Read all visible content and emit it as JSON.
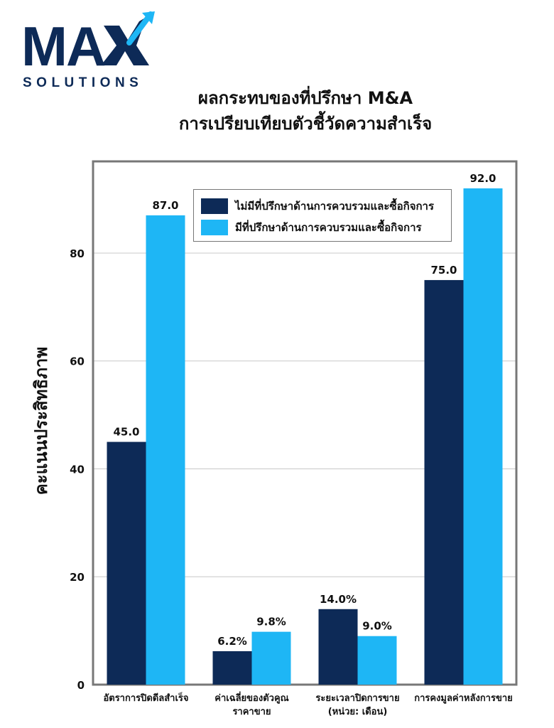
{
  "logo": {
    "text_main": "MAX",
    "text_sub": "SOLUTIONS"
  },
  "title_line1": "ผลกระทบของที่ปรึกษา M&A",
  "title_line2": "การเปรียบเทียบตัวชี้วัดความสำเร็จ",
  "colors": {
    "navy": "#0d2a57",
    "sky": "#1eb6f5",
    "grid": "#c8c8c8",
    "frame": "#777777"
  },
  "chart_data": {
    "type": "bar",
    "categories": [
      [
        "อัตราการปิดดีลสำเร็จ"
      ],
      [
        "ค่าเฉลี่ยของตัวคูณ",
        "ราคาขาย"
      ],
      [
        "ระยะเวลาปิดการขาย",
        "(หน่วย: เดือน)"
      ],
      [
        "การคงมูลค่าหลังการขาย"
      ]
    ],
    "series": [
      {
        "name": "ไม่มีที่ปรึกษาด้านการควบรวมและซื้อกิจการ",
        "values": [
          45.0,
          6.2,
          14.0,
          75.0
        ],
        "labels": [
          "45.0",
          "6.2%",
          "14.0%",
          "75.0"
        ],
        "color": "#0d2a57"
      },
      {
        "name": "มีที่ปรึกษาด้านการควบรวมและซื้อกิจการ",
        "values": [
          87.0,
          9.8,
          9.0,
          92.0
        ],
        "labels": [
          "87.0",
          "9.8%",
          "9.0%",
          "92.0"
        ],
        "color": "#1eb6f5"
      }
    ],
    "ylabel": "คะแนนประสิทธิภาพ",
    "yticks": [
      0,
      20,
      40,
      60,
      80
    ],
    "ylim": [
      0,
      97
    ],
    "grid": true,
    "legend_position": "top-center"
  }
}
